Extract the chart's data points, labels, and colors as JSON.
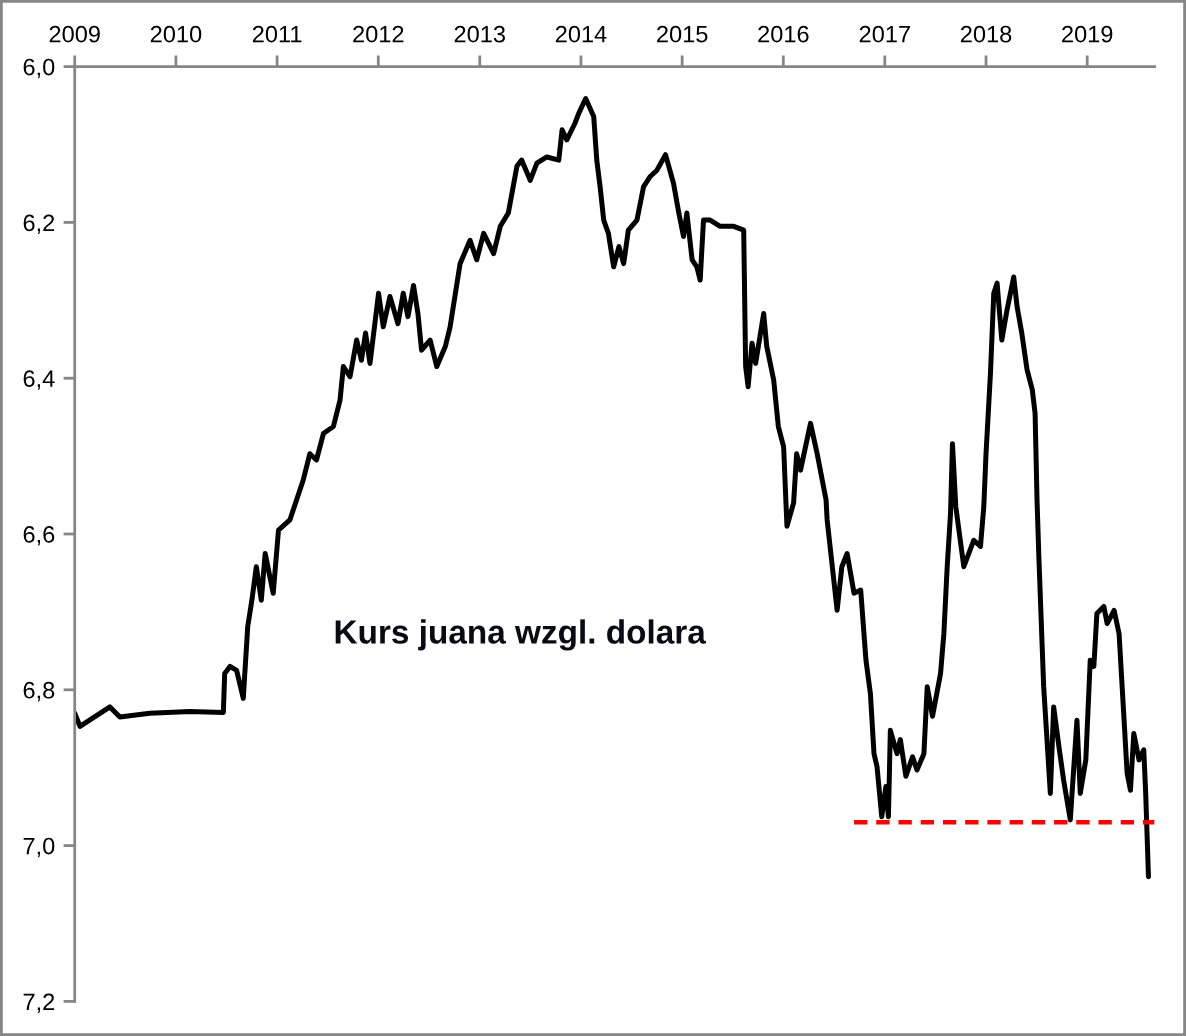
{
  "chart_data": {
    "type": "line",
    "annotations": [
      "Kurs juana wzgl. dolara"
    ],
    "x": [
      "2009-01-01",
      "2009-01-20",
      "2009-05-08",
      "2009-06-13",
      "2009-09-29",
      "2010-02-21",
      "2010-06-21",
      "2010-06-26",
      "2010-07-15",
      "2010-08-08",
      "2010-09-01",
      "2010-09-17",
      "2010-10-02",
      "2010-10-18",
      "2010-11-05",
      "2010-11-19",
      "2010-12-18",
      "2011-01-06",
      "2011-02-16",
      "2011-04-05",
      "2011-04-29",
      "2011-05-23",
      "2011-06-17",
      "2011-07-23",
      "2011-08-16",
      "2011-08-28",
      "2011-09-21",
      "2011-10-15",
      "2011-11-01",
      "2011-11-16",
      "2011-12-02",
      "2012-01-02",
      "2012-01-19",
      "2012-02-12",
      "2012-03-12",
      "2012-03-31",
      "2012-04-17",
      "2012-05-07",
      "2012-05-23",
      "2012-06-05",
      "2012-07-06",
      "2012-07-30",
      "2012-08-30",
      "2012-09-16",
      "2012-10-22",
      "2012-11-27",
      "2012-12-21",
      "2013-01-15",
      "2013-02-20",
      "2013-03-16",
      "2013-04-14",
      "2013-05-15",
      "2013-06-01",
      "2013-07-02",
      "2013-07-26",
      "2013-08-31",
      "2013-10-13",
      "2013-10-25",
      "2013-11-11",
      "2013-12-10",
      "2013-12-24",
      "2014-01-18",
      "2014-02-16",
      "2014-02-27",
      "2014-03-11",
      "2014-03-24",
      "2014-04-10",
      "2014-04-29",
      "2014-05-18",
      "2014-06-04",
      "2014-06-21",
      "2014-07-22",
      "2014-08-15",
      "2014-09-08",
      "2014-10-02",
      "2014-11-02",
      "2014-12-01",
      "2014-12-20",
      "2015-01-06",
      "2015-01-18",
      "2015-02-06",
      "2015-02-23",
      "2015-03-07",
      "2015-03-19",
      "2015-04-12",
      "2015-05-18",
      "2015-07-06",
      "2015-08-11",
      "2015-08-18",
      "2015-08-27",
      "2015-09-10",
      "2015-09-23",
      "2015-10-22",
      "2015-11-02",
      "2015-11-27",
      "2015-12-14",
      "2016-01-02",
      "2016-01-14",
      "2016-02-07",
      "2016-02-18",
      "2016-03-03",
      "2016-04-08",
      "2016-05-02",
      "2016-06-03",
      "2016-06-07",
      "2016-07-13",
      "2016-07-30",
      "2016-08-18",
      "2016-09-12",
      "2016-10-06",
      "2016-10-25",
      "2016-11-10",
      "2016-11-23",
      "2016-12-04",
      "2016-12-21",
      "2017-01-05",
      "2017-01-14",
      "2017-01-21",
      "2017-02-14",
      "2017-02-26",
      "2017-03-18",
      "2017-04-11",
      "2017-04-27",
      "2017-05-22",
      "2017-06-03",
      "2017-06-22",
      "2017-07-21",
      "2017-08-02",
      "2017-08-14",
      "2017-08-26",
      "2017-09-02",
      "2017-09-14",
      "2017-10-13",
      "2017-11-18",
      "2017-12-12",
      "2017-12-24",
      "2018-01-01",
      "2018-01-17",
      "2018-01-29",
      "2018-02-10",
      "2018-02-27",
      "2018-03-18",
      "2018-04-11",
      "2018-04-23",
      "2018-05-10",
      "2018-05-29",
      "2018-06-17",
      "2018-06-27",
      "2018-07-04",
      "2018-07-11",
      "2018-07-28",
      "2018-08-21",
      "2018-09-02",
      "2018-09-21",
      "2018-10-08",
      "2018-11-01",
      "2018-11-25",
      "2018-12-07",
      "2018-12-27",
      "2019-01-12",
      "2019-01-25",
      "2019-02-05",
      "2019-03-02",
      "2019-03-14",
      "2019-04-08",
      "2019-04-26",
      "2019-05-14",
      "2019-05-25",
      "2019-06-06",
      "2019-06-18",
      "2019-07-07",
      "2019-07-24",
      "2019-07-31",
      "2019-08-10"
    ],
    "series": [
      {
        "color": "#000000",
        "values": [
          6.83,
          6.847,
          6.822,
          6.835,
          6.83,
          6.828,
          6.829,
          6.779,
          6.77,
          6.775,
          6.811,
          6.719,
          6.685,
          6.642,
          6.685,
          6.625,
          6.676,
          6.595,
          6.582,
          6.531,
          6.497,
          6.505,
          6.471,
          6.462,
          6.428,
          6.385,
          6.398,
          6.351,
          6.377,
          6.342,
          6.381,
          6.291,
          6.334,
          6.295,
          6.33,
          6.291,
          6.321,
          6.281,
          6.317,
          6.364,
          6.351,
          6.385,
          6.359,
          6.334,
          6.253,
          6.223,
          6.248,
          6.214,
          6.24,
          6.205,
          6.188,
          6.128,
          6.12,
          6.146,
          6.124,
          6.116,
          6.12,
          6.081,
          6.094,
          6.073,
          6.06,
          6.041,
          6.064,
          6.12,
          6.154,
          6.197,
          6.214,
          6.257,
          6.231,
          6.253,
          6.21,
          6.197,
          6.154,
          6.141,
          6.133,
          6.113,
          6.15,
          6.188,
          6.218,
          6.188,
          6.248,
          6.257,
          6.274,
          6.197,
          6.197,
          6.205,
          6.205,
          6.21,
          6.385,
          6.411,
          6.355,
          6.381,
          6.317,
          6.359,
          6.402,
          6.462,
          6.488,
          6.59,
          6.56,
          6.497,
          6.518,
          6.458,
          6.497,
          6.556,
          6.582,
          6.698,
          6.642,
          6.625,
          6.676,
          6.672,
          6.762,
          6.805,
          6.882,
          6.899,
          6.963,
          6.924,
          6.963,
          6.852,
          6.882,
          6.864,
          6.911,
          6.886,
          6.903,
          6.882,
          6.796,
          6.834,
          6.779,
          6.728,
          6.642,
          6.574,
          6.484,
          6.565,
          6.642,
          6.608,
          6.616,
          6.565,
          6.497,
          6.394,
          6.291,
          6.278,
          6.351,
          6.312,
          6.27,
          6.308,
          6.342,
          6.389,
          6.415,
          6.445,
          6.556,
          6.633,
          6.796,
          6.933,
          6.822,
          6.873,
          6.916,
          6.967,
          6.839,
          6.933,
          6.89,
          6.762,
          6.77,
          6.702,
          6.693,
          6.715,
          6.698,
          6.728,
          6.839,
          6.907,
          6.929,
          6.856,
          6.89,
          6.877,
          6.933,
          7.04
        ]
      },
      {
        "type": "line",
        "x": [
          "2016-09-12",
          "2019-09-01"
        ],
        "values": [
          6.97,
          6.97
        ],
        "color": "#ff0000",
        "line_style": "dashed"
      }
    ],
    "xlim": [
      "2009-01-01",
      "2019-09-01"
    ],
    "xticks": [
      "2009",
      "2010",
      "2011",
      "2012",
      "2013",
      "2014",
      "2015",
      "2016",
      "2017",
      "2018",
      "2019"
    ],
    "ylim": [
      7.2,
      6.0
    ],
    "yticks": [
      {
        "value": 6.0,
        "label": "6,0"
      },
      {
        "value": 6.2,
        "label": "6,2"
      },
      {
        "value": 6.4,
        "label": "6,4"
      },
      {
        "value": 6.6,
        "label": "6,6"
      },
      {
        "value": 6.8,
        "label": "6,8"
      },
      {
        "value": 7.0,
        "label": "7,0"
      },
      {
        "value": 7.2,
        "label": "7,2"
      }
    ]
  }
}
